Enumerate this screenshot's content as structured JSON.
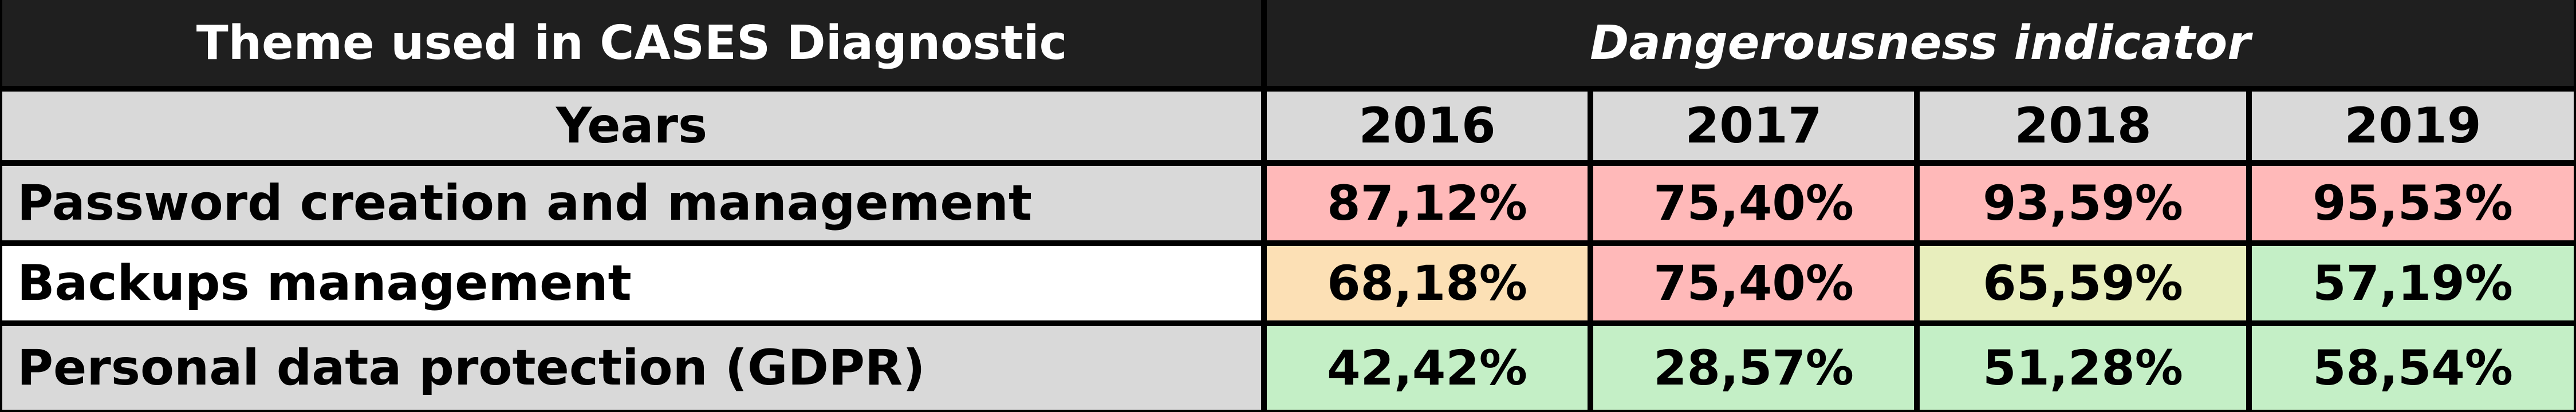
{
  "header": {
    "theme_title": "Theme used in CASES Diagnostic",
    "indicator_title": "Dangerousness indicator"
  },
  "years_label": "Years",
  "years": [
    "2016",
    "2017",
    "2018",
    "2019"
  ],
  "rows": [
    {
      "label": "Password creation and management",
      "label_bg": "#d9d9d9",
      "values": [
        "87,12%",
        "75,40%",
        "93,59%",
        "95,53%"
      ],
      "colors": [
        "#ffb9b9",
        "#ffb9b9",
        "#ffb9b9",
        "#ffb9b9"
      ]
    },
    {
      "label": "Backups management",
      "label_bg": "#ffffff",
      "values": [
        "68,18%",
        "75,40%",
        "65,59%",
        "57,19%"
      ],
      "colors": [
        "#fce0b5",
        "#ffb9b9",
        "#e8eebd",
        "#c4efc6"
      ]
    },
    {
      "label": "Personal data protection (GDPR)",
      "label_bg": "#d9d9d9",
      "values": [
        "42,42%",
        "28,57%",
        "51,28%",
        "58,54%"
      ],
      "colors": [
        "#c4efc6",
        "#c4efc6",
        "#c4efc6",
        "#c4efc6"
      ]
    }
  ]
}
